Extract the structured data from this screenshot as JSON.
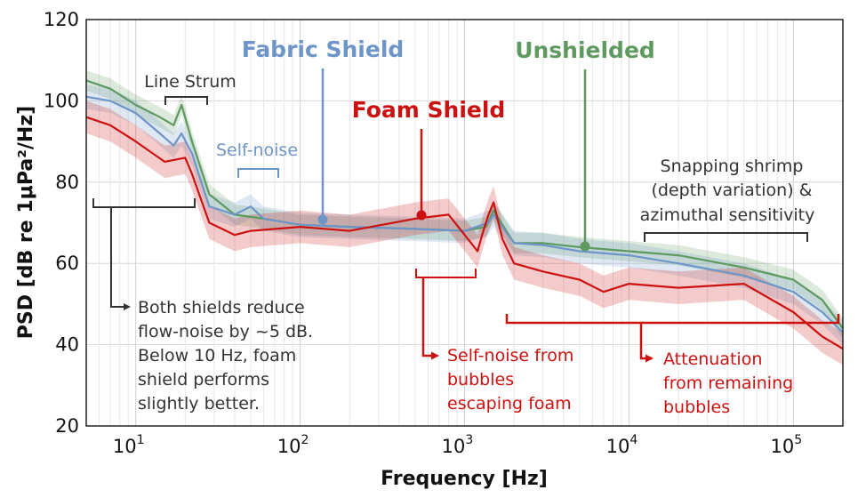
{
  "chart_data": {
    "type": "line",
    "xscale": "log",
    "xlim": [
      5,
      200000
    ],
    "ylim": [
      20,
      120
    ],
    "grid": true,
    "xlabel": "Frequency [Hz]",
    "ylabel": "PSD [dB re 1μPa²/Hz]",
    "ytick_labels": [
      "20",
      "40",
      "60",
      "80",
      "100",
      "120"
    ],
    "xtick_labels": [
      {
        "base": "10",
        "exp": "1"
      },
      {
        "base": "10",
        "exp": "2"
      },
      {
        "base": "10",
        "exp": "3"
      },
      {
        "base": "10",
        "exp": "4"
      },
      {
        "base": "10",
        "exp": "5"
      }
    ],
    "series": [
      {
        "name": "Unshielded",
        "color": "#5e9a60",
        "band": 2.5,
        "x": [
          5,
          7,
          10,
          14,
          17,
          19,
          22,
          28,
          40,
          60,
          100,
          200,
          500,
          1000,
          1350,
          1500,
          2000,
          3000,
          5000,
          10000,
          20000,
          50000,
          100000,
          150000,
          200000
        ],
        "y": [
          105,
          103,
          99,
          96,
          94,
          99,
          90,
          77,
          72,
          71,
          69.5,
          69,
          68.5,
          68,
          69,
          73,
          65,
          65,
          64,
          63,
          62,
          59,
          56,
          51,
          44
        ]
      },
      {
        "name": "Fabric Shield",
        "color": "#6d95c7",
        "band": 3,
        "x": [
          5,
          7,
          10,
          14,
          17,
          19,
          22,
          28,
          40,
          50,
          60,
          100,
          200,
          500,
          1000,
          1400,
          1500,
          2000,
          3000,
          5000,
          10000,
          20000,
          50000,
          100000,
          150000,
          200000
        ],
        "y": [
          101,
          100,
          97,
          92,
          89,
          92,
          87,
          74,
          72,
          74,
          71,
          69.5,
          69,
          68.5,
          68,
          70,
          72,
          65,
          64.5,
          63,
          62,
          60,
          57,
          53,
          48,
          43
        ]
      },
      {
        "name": "Foam Shield",
        "color": "#cc1111",
        "band": 4,
        "x": [
          5,
          7,
          10,
          15,
          20,
          22,
          28,
          40,
          50,
          100,
          200,
          500,
          800,
          1200,
          1300,
          1400,
          1500,
          1700,
          2000,
          3000,
          5000,
          7000,
          10000,
          20000,
          50000,
          100000,
          150000,
          200000
        ],
        "y": [
          96,
          94,
          90,
          85,
          86,
          82,
          70,
          67,
          68,
          69,
          68,
          71,
          72,
          63,
          68,
          72,
          75,
          66,
          60,
          58,
          56,
          53,
          55,
          54,
          55,
          48,
          42,
          39
        ]
      }
    ],
    "annotations": {
      "fabric_label": "Fabric Shield",
      "unshielded_label": "Unshielded",
      "foam_label": "Foam Shield",
      "line_strum": "Line Strum",
      "self_noise": "Self-noise",
      "flow_noise_note": [
        "Both shields reduce",
        "flow-noise by ~5 dB.",
        "Below 10 Hz, foam",
        "shield performs",
        "slightly better."
      ],
      "bubbles_note": [
        "Self-noise from",
        "bubbles",
        "escaping foam"
      ],
      "attenuation_note": [
        "Attenuation",
        "from remaining",
        "bubbles"
      ],
      "shrimp_note": [
        "Snapping shrimp",
        "(depth variation) &",
        "azimuthal sensitivity"
      ]
    }
  }
}
